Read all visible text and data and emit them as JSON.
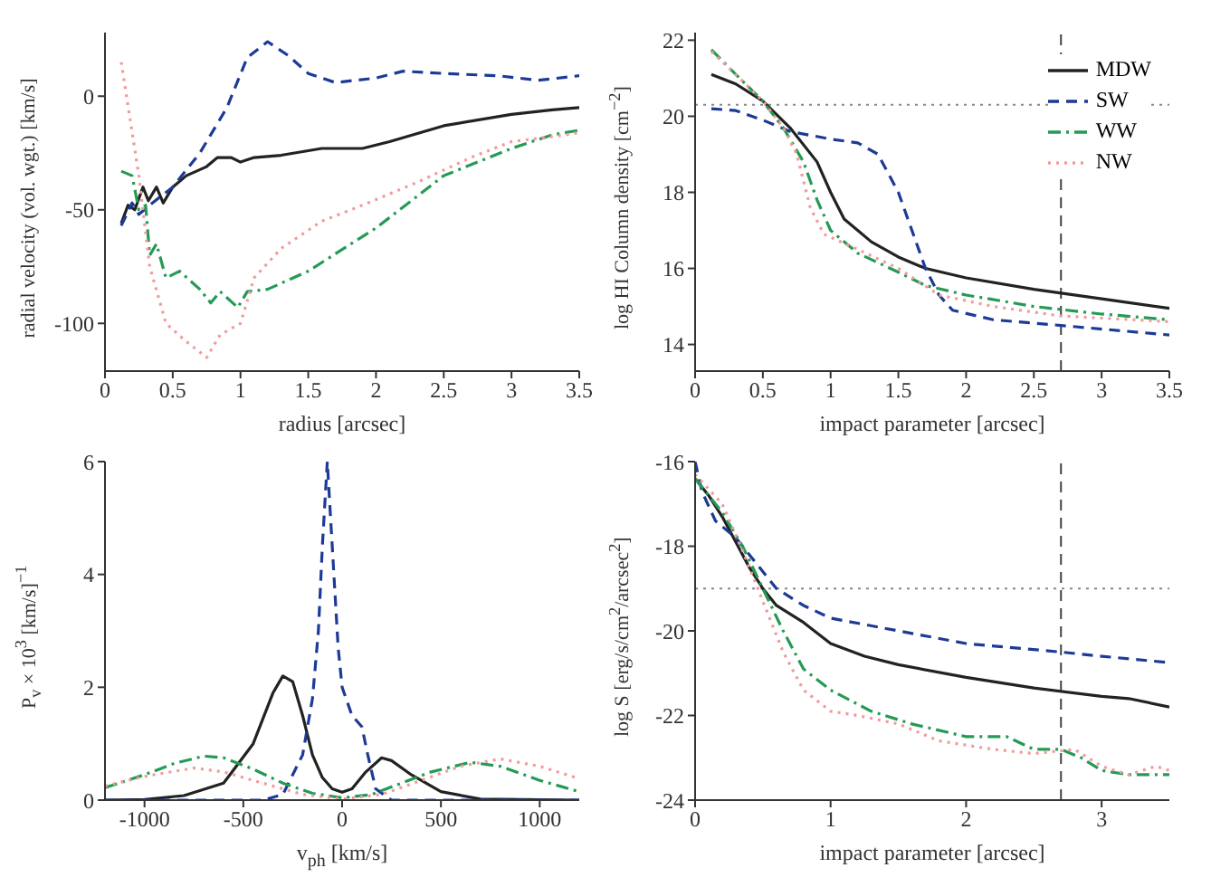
{
  "chart_data": [
    {
      "type": "line",
      "xlabel": "radius [arcsec]",
      "ylabel": "radial velocity (vol. wgt.) [km/s]",
      "xlim": [
        0,
        3.5
      ],
      "ylim": [
        -121,
        28
      ],
      "xticks": [
        0,
        0.5,
        1,
        1.5,
        2,
        2.5,
        3,
        3.5
      ],
      "yticks": [
        -100,
        -50,
        0
      ],
      "legend": false,
      "series": [
        {
          "color": "#222222",
          "line_style": "solid",
          "x": [
            0.12,
            0.17,
            0.22,
            0.28,
            0.32,
            0.38,
            0.43,
            0.5,
            0.6,
            0.75,
            0.83,
            0.93,
            1.0,
            1.1,
            1.3,
            1.6,
            1.9,
            2.1,
            2.5,
            3.0,
            3.3,
            3.5
          ],
          "values": [
            -56,
            -48,
            -50,
            -40,
            -46,
            -40,
            -47,
            -40,
            -35,
            -31,
            -27,
            -27,
            -29,
            -27,
            -26,
            -23,
            -23,
            -20,
            -13,
            -8,
            -6,
            -5
          ]
        },
        {
          "color": "#1c3a96",
          "line_style": "dashed",
          "x": [
            0.12,
            0.2,
            0.25,
            0.35,
            0.5,
            0.7,
            0.9,
            1.05,
            1.2,
            1.35,
            1.5,
            1.7,
            2.0,
            2.2,
            2.5,
            2.9,
            3.2,
            3.5
          ],
          "values": [
            -57,
            -47,
            -52,
            -47,
            -40,
            -25,
            -5,
            17,
            24,
            18,
            10,
            6,
            8,
            11,
            10,
            9,
            7,
            9
          ]
        },
        {
          "color": "#259a55",
          "line_style": "dashdot",
          "x": [
            0.12,
            0.2,
            0.25,
            0.3,
            0.33,
            0.38,
            0.45,
            0.55,
            0.7,
            0.78,
            0.85,
            0.98,
            1.05,
            1.2,
            1.5,
            2.0,
            2.5,
            3.0,
            3.3,
            3.5
          ],
          "values": [
            -33,
            -35,
            -50,
            -48,
            -70,
            -65,
            -80,
            -77,
            -85,
            -91,
            -86,
            -93,
            -86,
            -85,
            -77,
            -58,
            -35,
            -23,
            -17,
            -15
          ]
        },
        {
          "color": "#f29a9a",
          "line_style": "dotted",
          "x": [
            0.12,
            0.25,
            0.33,
            0.45,
            0.6,
            0.75,
            0.85,
            1.0,
            1.1,
            1.3,
            1.6,
            1.9,
            2.3,
            2.7,
            3.0,
            3.4,
            3.5
          ],
          "values": [
            15,
            -35,
            -75,
            -100,
            -108,
            -115,
            -105,
            -100,
            -80,
            -67,
            -55,
            -48,
            -38,
            -27,
            -20,
            -17,
            -16
          ]
        }
      ]
    },
    {
      "type": "line",
      "xlabel": "impact parameter [arcsec]",
      "ylabel": "log HI Column density [cm$^{−2}$]",
      "xlim": [
        0,
        3.5
      ],
      "ylim": [
        13.3,
        22.2
      ],
      "xticks": [
        0,
        0.5,
        1,
        1.5,
        2,
        2.5,
        3,
        3.5
      ],
      "yticks": [
        14,
        16,
        18,
        20,
        22
      ],
      "legend": "top right",
      "ref_lines": [
        {
          "axis": "x",
          "value": 2.7,
          "color": "#444444",
          "line_style": "dashed"
        },
        {
          "axis": "y",
          "value": 20.3,
          "color": "#888888",
          "line_style": "dotted"
        }
      ],
      "series": [
        {
          "name": "MDW",
          "color": "#222222",
          "line_style": "solid",
          "x": [
            0.12,
            0.3,
            0.5,
            0.7,
            0.9,
            1.0,
            1.1,
            1.3,
            1.5,
            1.7,
            2.0,
            2.5,
            3.0,
            3.5
          ],
          "values": [
            21.1,
            20.85,
            20.4,
            19.7,
            18.8,
            18.0,
            17.3,
            16.7,
            16.3,
            16.0,
            15.75,
            15.45,
            15.2,
            14.95
          ]
        },
        {
          "name": "SW",
          "color": "#1c3a96",
          "line_style": "dashed",
          "x": [
            0.12,
            0.3,
            0.5,
            0.7,
            1.0,
            1.2,
            1.35,
            1.5,
            1.6,
            1.7,
            1.8,
            1.9,
            2.2,
            2.7,
            3.5
          ],
          "values": [
            20.2,
            20.15,
            19.9,
            19.6,
            19.4,
            19.3,
            19.0,
            18.0,
            17.0,
            16.0,
            15.3,
            14.9,
            14.65,
            14.5,
            14.25
          ]
        },
        {
          "name": "WW",
          "color": "#259a55",
          "line_style": "dashdot",
          "x": [
            0.12,
            0.3,
            0.5,
            0.65,
            0.8,
            0.9,
            1.0,
            1.2,
            1.5,
            1.7,
            2.0,
            2.5,
            3.0,
            3.5
          ],
          "values": [
            21.75,
            21.1,
            20.4,
            19.7,
            18.8,
            17.8,
            17.0,
            16.4,
            15.9,
            15.55,
            15.3,
            15.0,
            14.8,
            14.65
          ]
        },
        {
          "name": "NW",
          "color": "#f29a9a",
          "line_style": "dotted",
          "x": [
            0.12,
            0.3,
            0.5,
            0.65,
            0.75,
            0.85,
            0.95,
            1.2,
            1.5,
            1.8,
            2.2,
            2.7,
            3.5
          ],
          "values": [
            21.7,
            21.1,
            20.4,
            19.7,
            19.0,
            17.6,
            16.9,
            16.5,
            16.0,
            15.3,
            15.0,
            14.75,
            14.6
          ]
        }
      ]
    },
    {
      "type": "line",
      "xlabel": "v$_{ph}$ [km/s]",
      "ylabel": "P$_{v}$ × 10$^{3}$ [km/s]$^{−1}$",
      "xlim": [
        -1200,
        1200
      ],
      "ylim": [
        0,
        6
      ],
      "xticks": [
        -1000,
        -500,
        0,
        500,
        1000
      ],
      "yticks": [
        0,
        2,
        4,
        6
      ],
      "legend": false,
      "series": [
        {
          "color": "#222222",
          "line_style": "solid",
          "x": [
            -1200,
            -1000,
            -800,
            -600,
            -450,
            -350,
            -300,
            -250,
            -200,
            -150,
            -100,
            -50,
            0,
            50,
            120,
            200,
            250,
            350,
            500,
            700,
            1200
          ],
          "values": [
            0,
            0.01,
            0.08,
            0.3,
            1.0,
            1.9,
            2.2,
            2.1,
            1.5,
            0.8,
            0.4,
            0.2,
            0.14,
            0.2,
            0.5,
            0.75,
            0.7,
            0.45,
            0.15,
            0.02,
            0
          ]
        },
        {
          "color": "#1c3a96",
          "line_style": "dashed",
          "x": [
            -1200,
            -400,
            -300,
            -200,
            -150,
            -120,
            -100,
            -75,
            -50,
            -20,
            0,
            50,
            100,
            130,
            170,
            250,
            1200
          ],
          "values": [
            0,
            0,
            0.1,
            0.8,
            1.8,
            3.0,
            4.5,
            6,
            4.5,
            2.7,
            2.0,
            1.5,
            1.3,
            0.8,
            0.2,
            0,
            0
          ]
        },
        {
          "color": "#259a55",
          "line_style": "dashdot",
          "x": [
            -1200,
            -1000,
            -850,
            -700,
            -600,
            -450,
            -300,
            -150,
            0,
            150,
            300,
            450,
            650,
            800,
            1000,
            1200
          ],
          "values": [
            0.22,
            0.45,
            0.65,
            0.78,
            0.75,
            0.55,
            0.3,
            0.12,
            0.04,
            0.1,
            0.3,
            0.5,
            0.67,
            0.6,
            0.35,
            0.15
          ]
        },
        {
          "color": "#f29a9a",
          "line_style": "dotted",
          "x": [
            -1200,
            -1000,
            -750,
            -600,
            -400,
            -200,
            0,
            200,
            400,
            600,
            800,
            1000,
            1200
          ],
          "values": [
            0.25,
            0.42,
            0.57,
            0.5,
            0.3,
            0.1,
            0.02,
            0.1,
            0.35,
            0.6,
            0.73,
            0.6,
            0.38
          ]
        }
      ]
    },
    {
      "type": "line",
      "xlabel": "impact parameter [arcsec]",
      "ylabel": "log S [erg/s/cm$^{2}$/arcsec$^{2}$]",
      "xlim": [
        0,
        3.5
      ],
      "ylim": [
        -24,
        -16
      ],
      "xticks": [
        0,
        1,
        2,
        3
      ],
      "yticks": [
        -24,
        -22,
        -20,
        -18,
        -16
      ],
      "legend": false,
      "ref_lines": [
        {
          "axis": "x",
          "value": 2.7,
          "color": "#444444",
          "line_style": "dashed"
        },
        {
          "axis": "y",
          "value": -19,
          "color": "#888888",
          "line_style": "dotted"
        }
      ],
      "series": [
        {
          "color": "#222222",
          "line_style": "solid",
          "x": [
            0,
            0.1,
            0.2,
            0.3,
            0.4,
            0.5,
            0.6,
            0.8,
            1.0,
            1.25,
            1.5,
            2.0,
            2.5,
            3.0,
            3.2,
            3.5
          ],
          "values": [
            -16.4,
            -16.8,
            -17.3,
            -17.9,
            -18.5,
            -19.0,
            -19.4,
            -19.8,
            -20.3,
            -20.6,
            -20.8,
            -21.1,
            -21.35,
            -21.55,
            -21.6,
            -21.8
          ]
        },
        {
          "color": "#1c3a96",
          "line_style": "dashed",
          "x": [
            0,
            0.05,
            0.15,
            0.3,
            0.45,
            0.6,
            0.8,
            1.0,
            1.5,
            2.0,
            2.7,
            3.0,
            3.5
          ],
          "values": [
            -16.0,
            -16.7,
            -17.4,
            -17.8,
            -18.4,
            -19.0,
            -19.4,
            -19.7,
            -20.0,
            -20.3,
            -20.5,
            -20.6,
            -20.75
          ]
        },
        {
          "color": "#259a55",
          "line_style": "dashdot",
          "x": [
            0,
            0.2,
            0.35,
            0.5,
            0.65,
            0.8,
            1.0,
            1.3,
            1.6,
            2.0,
            2.3,
            2.5,
            2.7,
            2.85,
            3.0,
            3.2,
            3.5
          ],
          "values": [
            -16.4,
            -17.2,
            -18.0,
            -19.0,
            -20.0,
            -20.9,
            -21.4,
            -21.9,
            -22.2,
            -22.5,
            -22.5,
            -22.8,
            -22.8,
            -23.0,
            -23.3,
            -23.4,
            -23.4
          ]
        },
        {
          "color": "#f29a9a",
          "line_style": "dotted",
          "x": [
            0,
            0.2,
            0.35,
            0.5,
            0.65,
            0.8,
            1.0,
            1.2,
            1.5,
            1.8,
            2.2,
            2.5,
            2.8,
            3.0,
            3.2,
            3.4,
            3.5
          ],
          "values": [
            -16.3,
            -17.0,
            -18.1,
            -19.3,
            -20.5,
            -21.4,
            -21.9,
            -22.0,
            -22.2,
            -22.6,
            -22.8,
            -22.9,
            -22.8,
            -23.2,
            -23.4,
            -23.2,
            -23.3
          ]
        }
      ]
    }
  ]
}
